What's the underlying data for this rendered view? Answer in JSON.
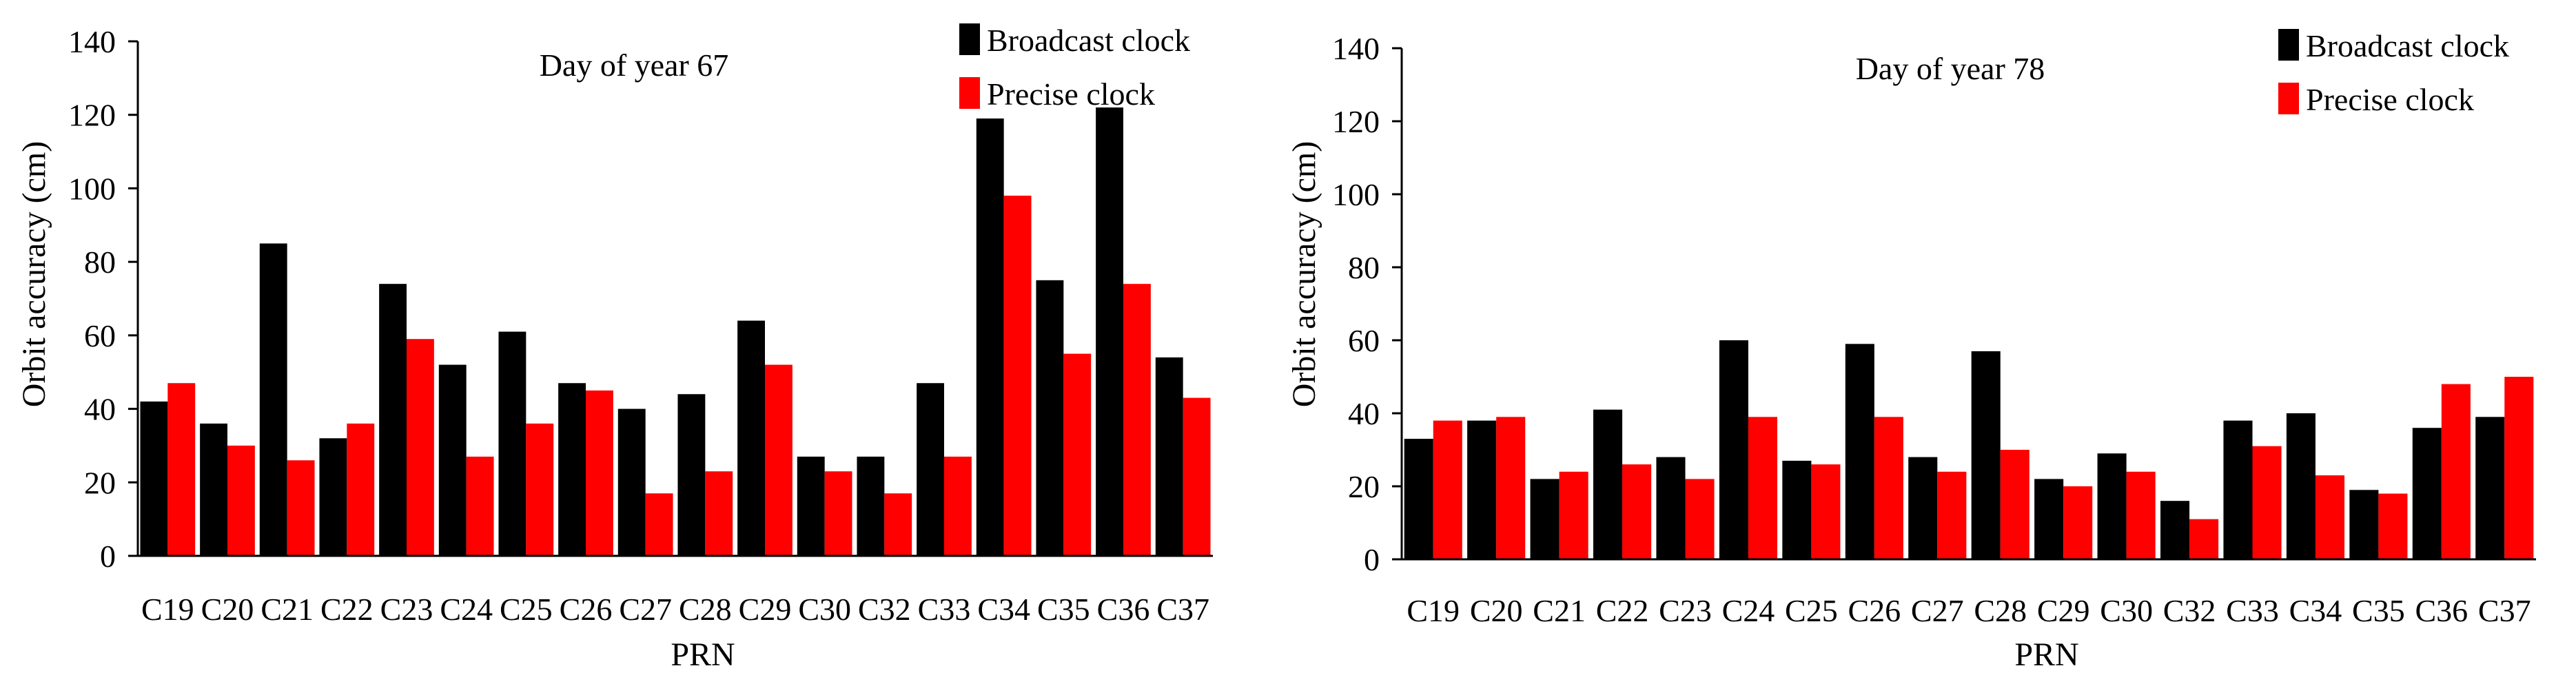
{
  "chart_data": [
    {
      "type": "bar",
      "title": "Day of year 67",
      "xlabel": "PRN",
      "ylabel": "Orbit accuracy (cm)",
      "ylim": [
        0,
        140
      ],
      "yticks": [
        0,
        20,
        40,
        60,
        80,
        100,
        120,
        140
      ],
      "categories": [
        "C19",
        "C20",
        "C21",
        "C22",
        "C23",
        "C24",
        "C25",
        "C26",
        "C27",
        "C28",
        "C29",
        "C30",
        "C32",
        "C33",
        "C34",
        "C35",
        "C36",
        "C37"
      ],
      "legend_position": "top-right",
      "series": [
        {
          "name": "Broadcast clock",
          "color": "#000000",
          "values": [
            42,
            36,
            85,
            32,
            74,
            52,
            61,
            47,
            40,
            44,
            64,
            27,
            27,
            47,
            119,
            75,
            122,
            54
          ]
        },
        {
          "name": "Precise clock",
          "color": "#ff0000",
          "values": [
            47,
            30,
            26,
            36,
            59,
            27,
            36,
            45,
            17,
            23,
            52,
            23,
            17,
            27,
            98,
            55,
            74,
            43
          ]
        }
      ]
    },
    {
      "type": "bar",
      "title": "Day of year 78",
      "xlabel": "PRN",
      "ylabel": "Orbit accuracy (cm)",
      "ylim": [
        0,
        140
      ],
      "yticks": [
        0,
        20,
        40,
        60,
        80,
        100,
        120,
        140
      ],
      "categories": [
        "C19",
        "C20",
        "C21",
        "C22",
        "C23",
        "C24",
        "C25",
        "C26",
        "C27",
        "C28",
        "C29",
        "C30",
        "C32",
        "C33",
        "C34",
        "C35",
        "C36",
        "C37"
      ],
      "legend_position": "top-right",
      "series": [
        {
          "name": "Broadcast clock",
          "color": "#000000",
          "values": [
            33,
            38,
            22,
            41,
            28,
            60,
            27,
            59,
            28,
            57,
            22,
            29,
            16,
            38,
            40,
            19,
            36,
            39
          ]
        },
        {
          "name": "Precise clock",
          "color": "#ff0000",
          "values": [
            38,
            39,
            24,
            26,
            22,
            39,
            26,
            39,
            24,
            30,
            20,
            24,
            11,
            31,
            23,
            18,
            48,
            50
          ]
        }
      ]
    }
  ]
}
